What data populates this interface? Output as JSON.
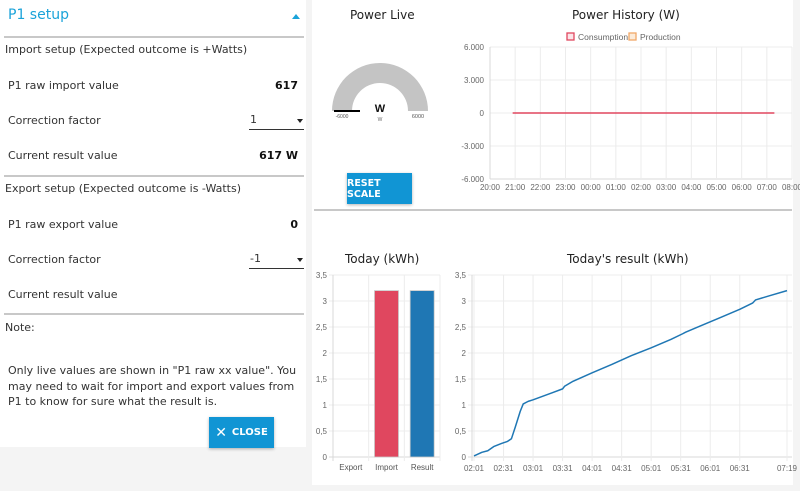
{
  "setup_panel": {
    "title": "P1 setup",
    "import": {
      "section_title": "Import setup (Expected outcome is +Watts)",
      "raw_label": "P1 raw import value",
      "raw_value": "617",
      "correction_label": "Correction factor",
      "correction_value": "1",
      "result_label": "Current result value",
      "result_value": "617 W"
    },
    "export": {
      "section_title": "Export setup (Expected outcome is -Watts)",
      "raw_label": "P1 raw export value",
      "raw_value": "0",
      "correction_label": "Correction factor",
      "correction_value": "-1",
      "result_label": "Current result value",
      "result_value": ""
    },
    "note_label": "Note:",
    "note_text": "Only live values are shown in \"P1 raw xx value\". You may need to wait for import and export values from P1 to know for sure what the result is.",
    "close_label": "CLOSE",
    "close_icon": "close-x-icon"
  },
  "power_live": {
    "title": "Power Live",
    "unit_big": "W",
    "unit_small": "W",
    "min_label": "-6000",
    "max_label": "6000",
    "value": 617,
    "min": -6000,
    "max": 6000,
    "reset_label": "RESET SCALE",
    "colors": {
      "track": "#c4c4c4",
      "fill": "#000000"
    }
  },
  "chart_data": [
    {
      "type": "line",
      "title": "Power History (W)",
      "legend": [
        "Consumption",
        "Production"
      ],
      "legend_position": "top",
      "x_ticks": [
        "20:00",
        "21:00",
        "22:00",
        "23:00",
        "00:00",
        "01:00",
        "02:00",
        "03:00",
        "04:00",
        "05:00",
        "06:00",
        "07:00",
        "08:00"
      ],
      "y_ticks": [
        "6.000",
        "3.000",
        "0",
        "-3.000",
        "-6.000"
      ],
      "ylim": [
        -6000,
        6000
      ],
      "xlim_hours": [
        0,
        12
      ],
      "grid": true,
      "series": [
        {
          "name": "Consumption",
          "color": "#e0475f",
          "x_hours": [
            0.9,
            11.3
          ],
          "values": [
            0,
            0
          ]
        },
        {
          "name": "Production",
          "color": "#f0a868",
          "x_hours": [],
          "values": []
        }
      ]
    },
    {
      "type": "bar",
      "title": "Today (kWh)",
      "categories": [
        "Export",
        "Import",
        "Result"
      ],
      "values": [
        0,
        3.2,
        3.2
      ],
      "colors": [
        "#1f77b4",
        "#e0475f",
        "#1f77b4"
      ],
      "y_ticks": [
        "3,5",
        "3",
        "2,5",
        "2",
        "1,5",
        "1",
        "0,5",
        "0"
      ],
      "ylim": [
        0,
        3.5
      ],
      "grid": true
    },
    {
      "type": "line",
      "title": "Today's result (kWh)",
      "x_ticks": [
        "02:01",
        "02:31",
        "03:01",
        "03:31",
        "04:01",
        "04:31",
        "05:01",
        "05:31",
        "06:01",
        "06:31",
        "07:19"
      ],
      "x_tick_minutes": [
        0,
        30,
        60,
        90,
        120,
        150,
        180,
        210,
        240,
        270,
        318
      ],
      "y_ticks": [
        "3,5",
        "3",
        "2,5",
        "2",
        "1,5",
        "1",
        "0,5",
        "0"
      ],
      "ylim": [
        0,
        3.5
      ],
      "grid": true,
      "series": [
        {
          "name": "Result",
          "color": "#1f77b4",
          "x_minutes": [
            0,
            8,
            14,
            20,
            28,
            34,
            38,
            42,
            47,
            50,
            55,
            60,
            80,
            90,
            92,
            100,
            120,
            140,
            160,
            180,
            200,
            212,
            215,
            230,
            250,
            270,
            283,
            286,
            300,
            318
          ],
          "values": [
            0.02,
            0.09,
            0.12,
            0.2,
            0.26,
            0.3,
            0.35,
            0.58,
            0.88,
            1.02,
            1.07,
            1.1,
            1.24,
            1.31,
            1.36,
            1.45,
            1.62,
            1.78,
            1.95,
            2.1,
            2.26,
            2.37,
            2.4,
            2.52,
            2.68,
            2.84,
            2.96,
            3.02,
            3.1,
            3.2
          ]
        }
      ]
    }
  ]
}
